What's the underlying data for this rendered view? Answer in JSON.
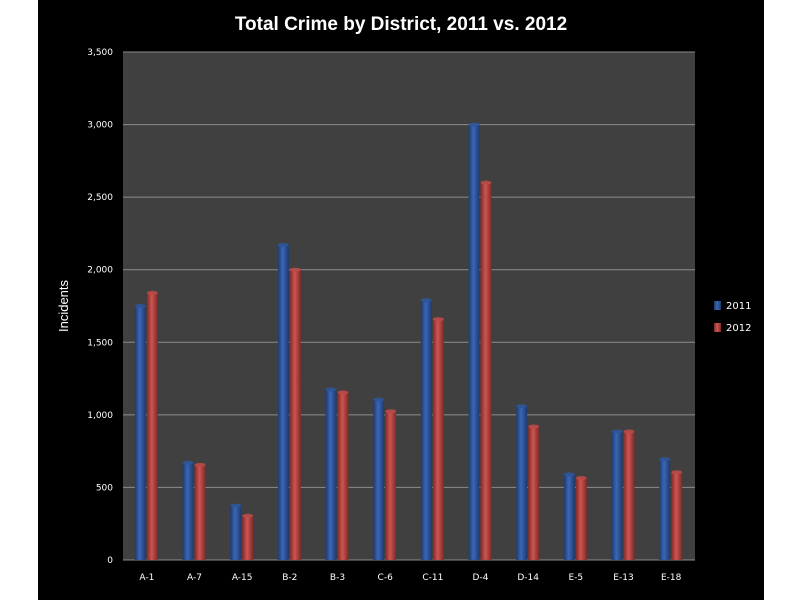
{
  "chart_data": {
    "type": "bar",
    "title": "Total Crime by District, 2011 vs. 2012",
    "xlabel": "",
    "ylabel": "Incidents",
    "ylim": [
      0,
      3500
    ],
    "yticks": [
      0,
      500,
      1000,
      1500,
      2000,
      2500,
      3000,
      3500
    ],
    "ytick_labels": [
      "0",
      "500",
      "1,000",
      "1,500",
      "2,000",
      "2,500",
      "3,000",
      "3,500"
    ],
    "categories": [
      "A-1",
      "A-7",
      "A-15",
      "B-2",
      "B-3",
      "C-6",
      "C-11",
      "D-4",
      "D-14",
      "E-5",
      "E-13",
      "E-18"
    ],
    "series": [
      {
        "name": "2011",
        "color": "#2f5597",
        "values": [
          1750,
          670,
          375,
          2170,
          1175,
          1105,
          1790,
          3000,
          1060,
          590,
          885,
          695
        ]
      },
      {
        "name": "2012",
        "color": "#b94a48",
        "values": [
          1840,
          655,
          305,
          2000,
          1155,
          1025,
          1660,
          2600,
          920,
          565,
          885,
          605
        ]
      }
    ],
    "grid": true,
    "legend_position": "right",
    "colors": {
      "background": "#000000",
      "plot_area": "#404040",
      "gridline": "#8c8c8c",
      "text": "#ffffff"
    }
  }
}
